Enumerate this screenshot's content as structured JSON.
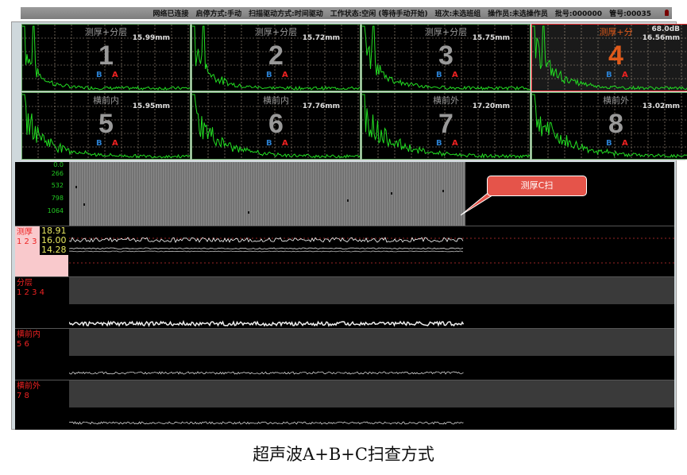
{
  "status_bar": {
    "items": [
      "网络已连接",
      "启停方式:手动",
      "扫描驱动方式:时间驱动",
      "工作状态:空闲 (等待手动开始)",
      "班次:未选班组",
      "操作员:未选操作员",
      "批号:000000",
      "管号:00035"
    ]
  },
  "ascan_panels": [
    {
      "title": "测厚+分层",
      "value": "15.99mm",
      "number": "1",
      "gate_b": "B",
      "gate_a": "A",
      "selected": false
    },
    {
      "title": "测厚+分层",
      "value": "15.72mm",
      "number": "2",
      "gate_b": "B",
      "gate_a": "A",
      "selected": false
    },
    {
      "title": "测厚+分层",
      "value": "15.75mm",
      "number": "3",
      "gate_b": "B",
      "gate_a": "A",
      "selected": false
    },
    {
      "title": "测厚+分",
      "gain": "68.0dB",
      "value": "16.56mm",
      "number": "4",
      "gate_b": "B",
      "gate_a": "A",
      "selected": true
    },
    {
      "title": "横前内",
      "value": "15.95mm",
      "number": "5",
      "gate_b": "B",
      "gate_a": "A",
      "selected": false
    },
    {
      "title": "横前内",
      "value": "17.76mm",
      "number": "6",
      "gate_b": "B",
      "gate_a": "A",
      "selected": false
    },
    {
      "title": "横前外",
      "value": "17.20mm",
      "number": "7",
      "gate_b": "B",
      "gate_a": "A",
      "selected": false
    },
    {
      "title": "横前外",
      "value": "13.02mm",
      "number": "8",
      "gate_b": "B",
      "gate_a": "A",
      "selected": false
    }
  ],
  "cscan": {
    "axis_ticks": [
      "0.0",
      "266",
      "532",
      "798",
      "1064"
    ],
    "callout": "测厚C扫"
  },
  "strips": [
    {
      "label": "测厚",
      "channels": "1 2 3",
      "values": [
        "18.91",
        "16.00",
        "14.28"
      ]
    },
    {
      "label": "分层",
      "channels": "1 2 3 4"
    },
    {
      "label": "横前内",
      "channels": "5 6"
    },
    {
      "label": "横前外",
      "channels": "7 8"
    }
  ],
  "caption": "超声波A+B+C扫查方式",
  "colors": {
    "waveform": "#22dd22",
    "selected_border": "#ee3333",
    "label_red": "#ee2222",
    "value_yellow": "#e8e860"
  }
}
